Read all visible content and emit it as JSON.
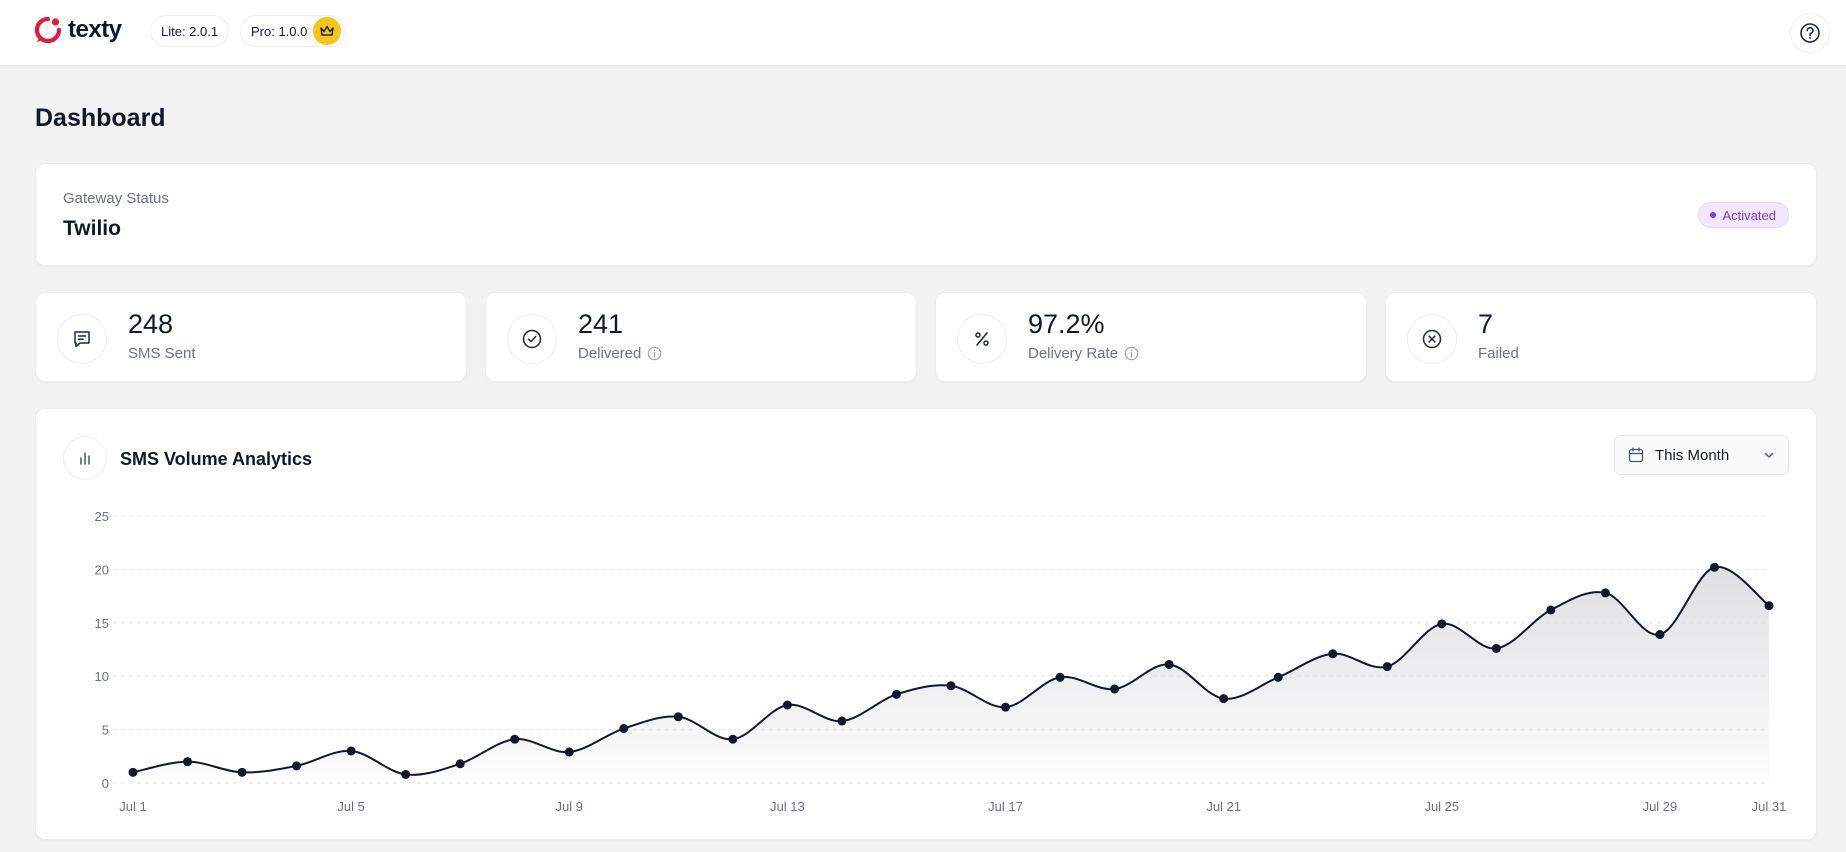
{
  "header": {
    "brand": "texty",
    "lite_version": "Lite: 2.0.1",
    "pro_version": "Pro: 1.0.0",
    "accent": "#e8173c",
    "crown_color": "#f5c518"
  },
  "page": {
    "title": "Dashboard"
  },
  "gateway": {
    "label": "Gateway Status",
    "name": "Twilio",
    "status": "Activated",
    "status_color": "#7c3aed"
  },
  "stats": [
    {
      "value": "248",
      "label": "SMS Sent",
      "icon": "message-icon"
    },
    {
      "value": "241",
      "label": "Delivered",
      "icon": "check-circle-icon",
      "info": true
    },
    {
      "value": "97.2%",
      "label": "Delivery Rate",
      "icon": "percent-icon",
      "info": true
    },
    {
      "value": "7",
      "label": "Failed",
      "icon": "x-circle-icon"
    }
  ],
  "analytics": {
    "title": "SMS Volume Analytics",
    "range_label": "This Month"
  },
  "chart_data": {
    "type": "area",
    "title": "",
    "xlabel": "",
    "ylabel": "",
    "ylim": [
      0,
      25
    ],
    "yticks": [
      0,
      5,
      10,
      15,
      20,
      25
    ],
    "xlim": [
      1,
      31
    ],
    "x": [
      1,
      2,
      3,
      4,
      5,
      6,
      7,
      8,
      9,
      10,
      11,
      12,
      13,
      14,
      15,
      16,
      17,
      18,
      19,
      20,
      21,
      22,
      23,
      24,
      25,
      26,
      27,
      28,
      29,
      30,
      31
    ],
    "xtick_labels": [
      {
        "x": 1,
        "label": "Jul 1"
      },
      {
        "x": 5,
        "label": "Jul 5"
      },
      {
        "x": 9,
        "label": "Jul 9"
      },
      {
        "x": 13,
        "label": "Jul 13"
      },
      {
        "x": 17,
        "label": "Jul 17"
      },
      {
        "x": 21,
        "label": "Jul 21"
      },
      {
        "x": 25,
        "label": "Jul 25"
      },
      {
        "x": 29,
        "label": "Jul 29"
      },
      {
        "x": 31,
        "label": "Jul 31"
      }
    ],
    "series": [
      {
        "values": [
          1,
          2,
          1,
          1.6,
          3,
          0.8,
          1.8,
          4.1,
          2.9,
          5.1,
          6.2,
          4.1,
          7.3,
          5.8,
          8.3,
          9.1,
          7.1,
          9.9,
          8.8,
          11.1,
          7.9,
          9.9,
          12.1,
          10.9,
          14.9,
          12.6,
          16.2,
          17.8,
          13.9,
          20.2,
          16.6
        ]
      }
    ],
    "grid": true,
    "line_color": "#111827",
    "fill_color": "#d9dadd"
  }
}
